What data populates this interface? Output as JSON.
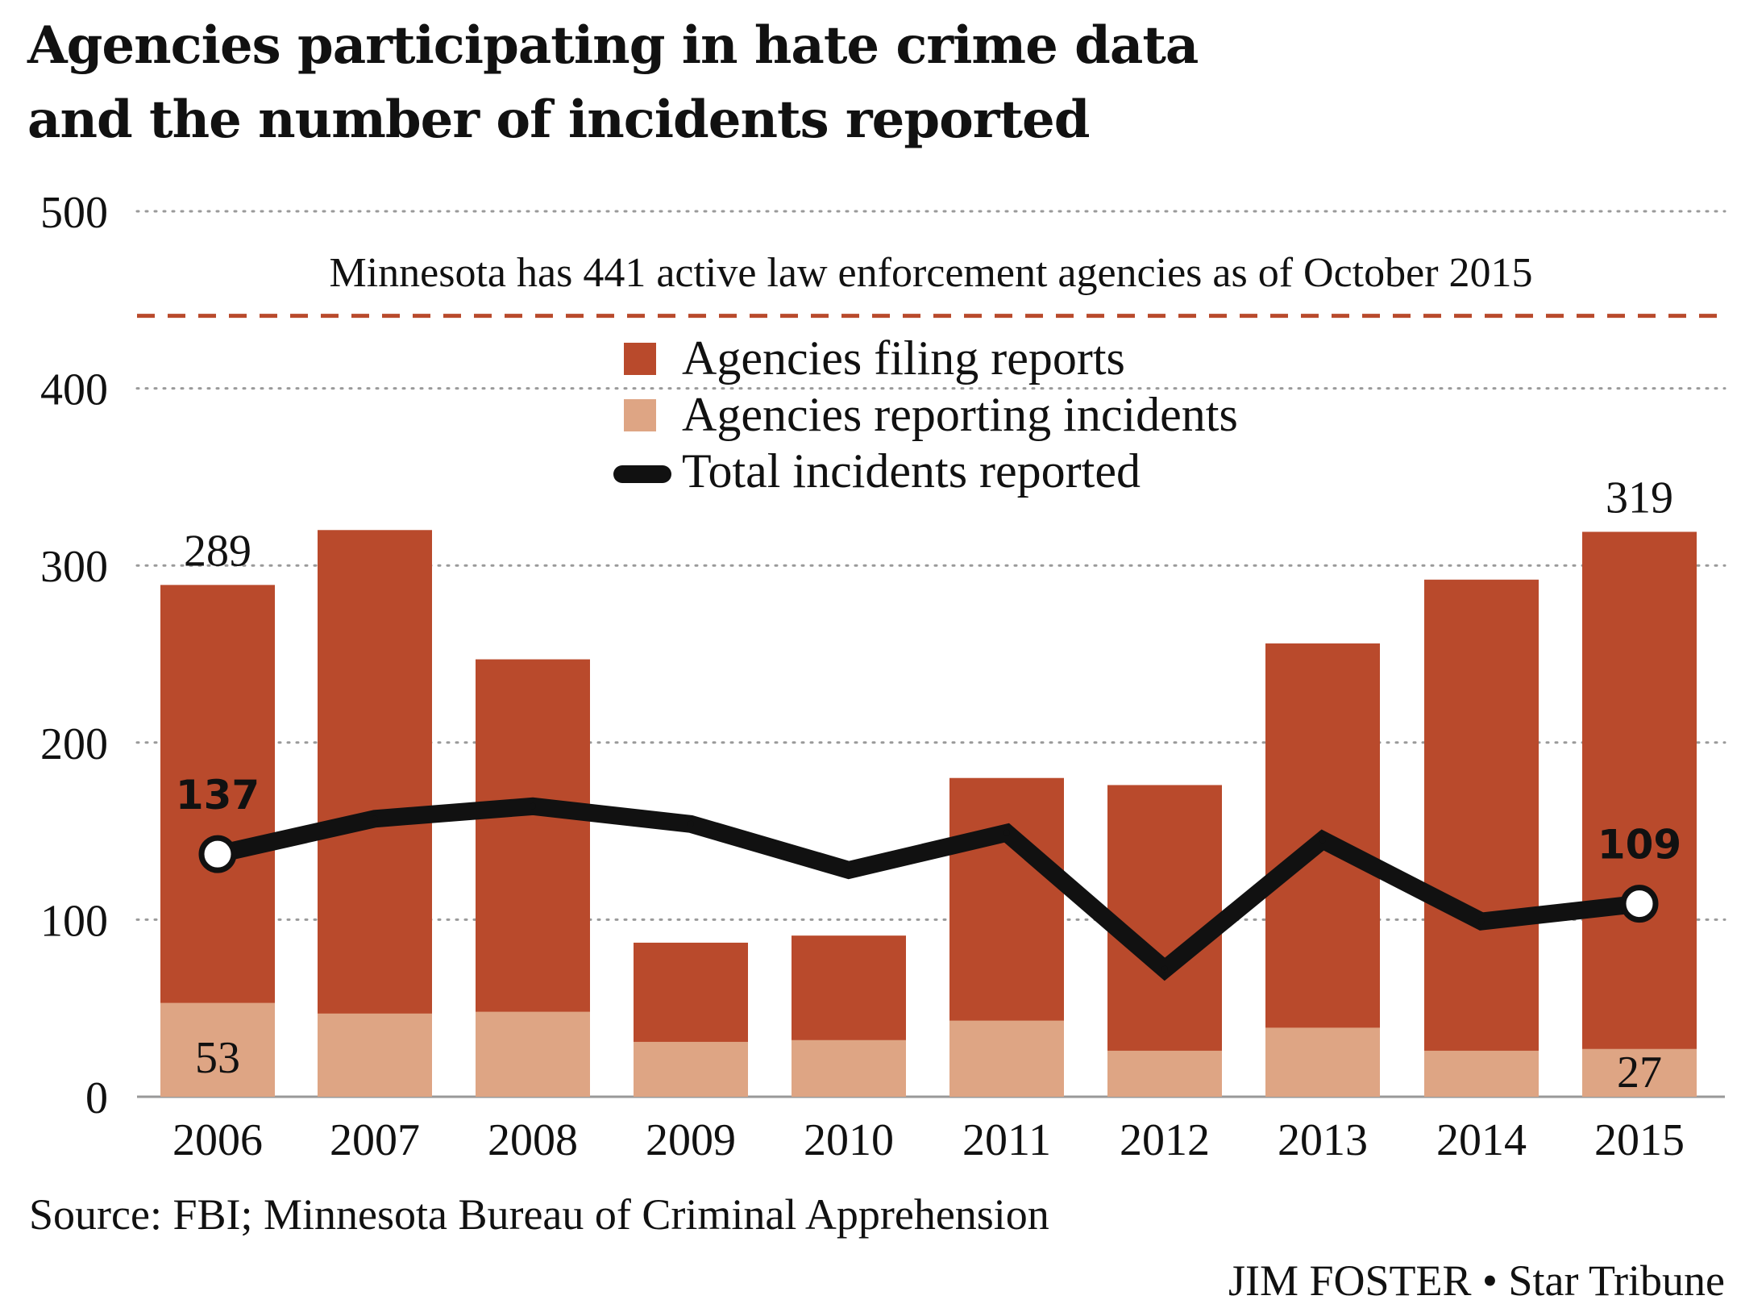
{
  "chart_data": {
    "type": "bar",
    "title_lines": [
      "Agencies participating in hate crime data",
      "and the number of incidents reported"
    ],
    "categories": [
      "2006",
      "2007",
      "2008",
      "2009",
      "2010",
      "2011",
      "2012",
      "2013",
      "2014",
      "2015"
    ],
    "series": [
      {
        "name": "Agencies filing reports",
        "kind": "bar-stacked-total",
        "color": "#b94a2c",
        "values": [
          289,
          320,
          247,
          87,
          91,
          180,
          176,
          256,
          292,
          319
        ]
      },
      {
        "name": "Agencies reporting incidents",
        "kind": "bar-inner",
        "color": "#dea584",
        "values": [
          53,
          47,
          48,
          31,
          32,
          43,
          26,
          39,
          26,
          27
        ]
      },
      {
        "name": "Total incidents reported",
        "kind": "line",
        "color": "#111111",
        "values": [
          137,
          157,
          164,
          154,
          128,
          149,
          72,
          145,
          99,
          109
        ]
      }
    ],
    "ylim": [
      0,
      500
    ],
    "yticks": [
      0,
      100,
      200,
      300,
      400,
      500
    ],
    "grid": "dotted horizontal",
    "reference_line": {
      "value": 441,
      "color": "#b94a2c",
      "label": "Minnesota has 441 active law enforcement agencies as of October 2015"
    },
    "data_labels": {
      "top": [
        {
          "index": 0,
          "text": "289"
        },
        {
          "index": 9,
          "text": "319"
        }
      ],
      "inner": [
        {
          "index": 0,
          "text": "53"
        },
        {
          "index": 9,
          "text": "27"
        }
      ],
      "line": [
        {
          "index": 0,
          "text": "137"
        },
        {
          "index": 9,
          "text": "109"
        }
      ]
    },
    "legend_position": "top-center",
    "source": "Source: FBI; Minnesota Bureau of Criminal Apprehension",
    "credit": "JIM FOSTER • Star Tribune"
  }
}
